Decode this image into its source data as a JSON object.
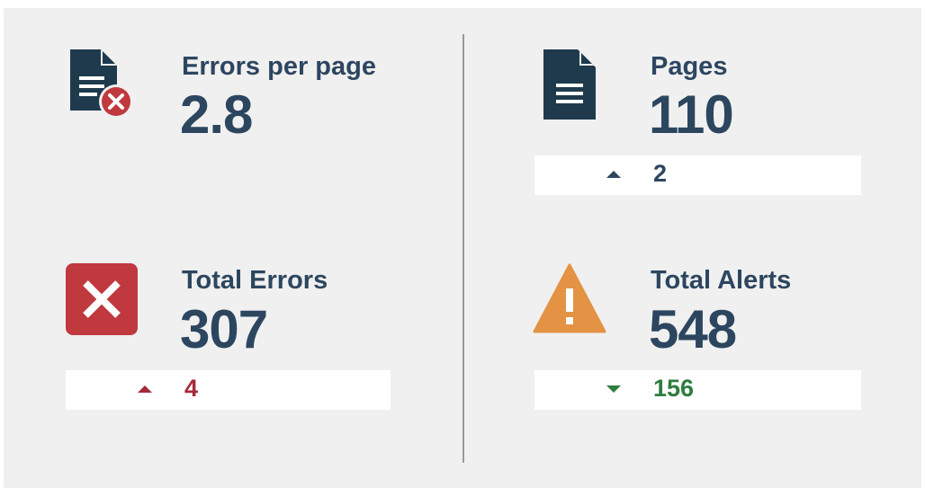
{
  "metrics": {
    "errors_per_page": {
      "label": "Errors per page",
      "value": "2.8",
      "icon": "document-error-icon"
    },
    "pages": {
      "label": "Pages",
      "value": "110",
      "icon": "document-icon",
      "delta": {
        "direction": "up",
        "value": "2",
        "color": "#2d4660"
      }
    },
    "total_errors": {
      "label": "Total Errors",
      "value": "307",
      "icon": "error-x-icon",
      "delta": {
        "direction": "up",
        "value": "4",
        "color": "#a52a38"
      }
    },
    "total_alerts": {
      "label": "Total Alerts",
      "value": "548",
      "icon": "warning-icon",
      "delta": {
        "direction": "down",
        "value": "156",
        "color": "#2e7d3f"
      }
    }
  },
  "colors": {
    "text": "#2d4660",
    "error_red": "#c0393f",
    "warning_orange": "#e39343",
    "document_dark": "#1f3a4d",
    "background": "#f0f0f0"
  }
}
